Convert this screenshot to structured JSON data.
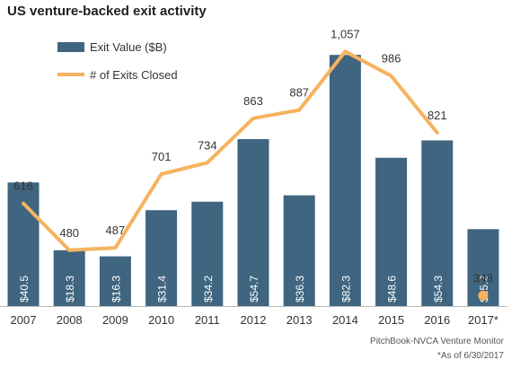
{
  "title": "US venture-backed exit activity",
  "source": "PitchBook-NVCA Venture Monitor",
  "footnote": "*As of 6/30/2017",
  "colors": {
    "bar": "#3f6580",
    "line": "#f6b25e",
    "text": "#333333",
    "bar_label": "#ffffff",
    "axis": "#bbbbbb"
  },
  "chart_data": {
    "type": "bar+line",
    "categories": [
      "2007",
      "2008",
      "2009",
      "2010",
      "2011",
      "2012",
      "2013",
      "2014",
      "2015",
      "2016",
      "2017*"
    ],
    "series": [
      {
        "name": "Exit Value ($B)",
        "type": "bar",
        "values": [
          40.5,
          18.3,
          16.3,
          31.4,
          34.2,
          54.7,
          36.3,
          82.3,
          48.6,
          54.3,
          25.2
        ],
        "labels": [
          "$40.5",
          "$18.3",
          "$16.3",
          "$31.4",
          "$34.2",
          "$54.7",
          "$36.3",
          "$82.3",
          "$48.6",
          "$54.3",
          "$25.2"
        ]
      },
      {
        "name": "# of Exits Closed",
        "type": "line",
        "values": [
          616,
          480,
          487,
          701,
          734,
          863,
          887,
          1057,
          986,
          821,
          348
        ],
        "labels": [
          "616",
          "480",
          "487",
          "701",
          "734",
          "863",
          "887",
          "1,057",
          "986",
          "821",
          "348"
        ],
        "connected_through_index": 9,
        "separate_point_indices": [
          10
        ]
      }
    ],
    "legend": "top-left",
    "grid": false,
    "y_axis_visible": false
  }
}
